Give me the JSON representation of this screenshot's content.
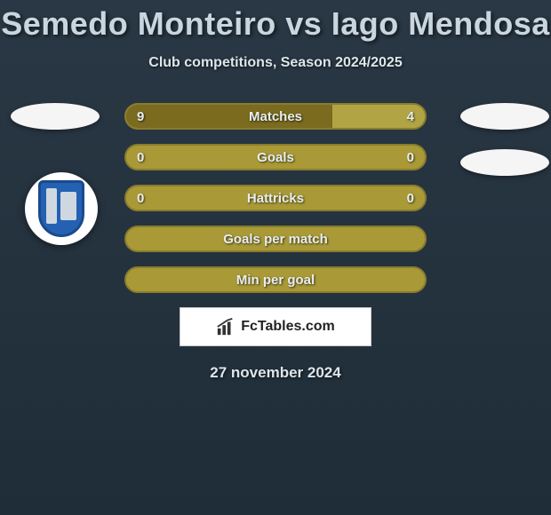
{
  "title": "Semedo Monteiro vs Iago Mendosa",
  "subtitle": "Club competitions, Season 2024/2025",
  "date": "27 november 2024",
  "brand": "FcTables.com",
  "colors": {
    "bar_border": "#8a7c2e",
    "bar_empty": "#a99a37",
    "bar_left_fill": "#7a6b1f",
    "bar_right_fill": "#b0a445",
    "background_top": "#2a3845",
    "background_bottom": "#1f2d38",
    "text": "#e8edf0"
  },
  "bars": [
    {
      "label": "Matches",
      "left_value": "9",
      "right_value": "4",
      "left_pct": 69,
      "right_pct": 31,
      "show_values": true
    },
    {
      "label": "Goals",
      "left_value": "0",
      "right_value": "0",
      "left_pct": 0,
      "right_pct": 0,
      "show_values": true
    },
    {
      "label": "Hattricks",
      "left_value": "0",
      "right_value": "0",
      "left_pct": 0,
      "right_pct": 0,
      "show_values": true
    },
    {
      "label": "Goals per match",
      "left_value": "",
      "right_value": "",
      "left_pct": 0,
      "right_pct": 0,
      "show_values": false
    },
    {
      "label": "Min per goal",
      "left_value": "",
      "right_value": "",
      "left_pct": 0,
      "right_pct": 0,
      "show_values": false
    }
  ]
}
